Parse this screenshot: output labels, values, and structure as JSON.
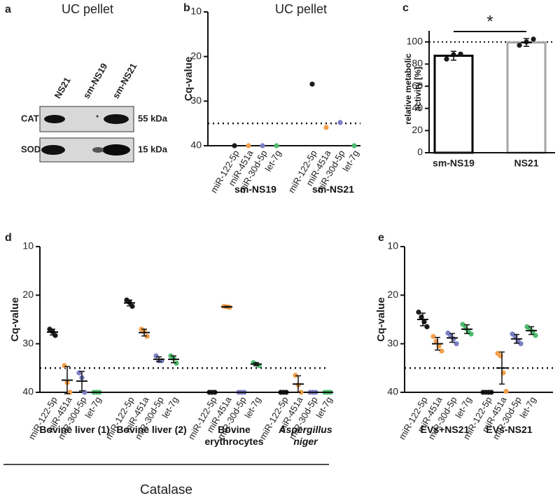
{
  "blot": {
    "panel": "a",
    "title": "UC pellet",
    "lanes": [
      "NS21",
      "sm-NS19",
      "sm-NS21"
    ],
    "rows": [
      {
        "label": "CAT",
        "size": "55 kDa"
      },
      {
        "label": "SOD",
        "size": "15 kDa"
      }
    ]
  },
  "chart_data": [
    {
      "type": "strip",
      "panel": "b",
      "title": "UC pellet",
      "ylabel": "Cq-value",
      "ylim": [
        10,
        40
      ],
      "yticks": [
        10,
        20,
        30,
        40
      ],
      "inverted": true,
      "threshold": 35,
      "categories": [
        "miR-122-5p",
        "miR-451a",
        "miR-30d-5p",
        "let-7g"
      ],
      "colors": [
        "#1a1a1a",
        "#f4a04a",
        "#7b7fc4",
        "#4cbb6c"
      ],
      "groups": [
        {
          "name": "sm-NS19",
          "points": [
            [
              40
            ],
            [
              40
            ],
            [
              40
            ],
            [
              40
            ]
          ]
        },
        {
          "name": "sm-NS21",
          "points": [
            [
              26.2
            ],
            [
              35.9
            ],
            [
              34.8
            ],
            [
              40
            ]
          ]
        }
      ]
    },
    {
      "type": "bar",
      "panel": "c",
      "ylabel": "relative metabolic activity [%]",
      "ylim": [
        0,
        110
      ],
      "yticks": [
        0,
        20,
        40,
        60,
        80,
        100
      ],
      "reference": 100,
      "annotation": "*",
      "categories": [
        "sm-NS19",
        "NS21"
      ],
      "values": [
        87.5,
        99.5
      ],
      "errors": [
        4,
        3.5
      ],
      "points": [
        [
          84.5,
          88.5,
          89
        ],
        [
          97,
          100,
          102.5
        ]
      ],
      "colors": [
        "#000000",
        "#a6a6a6"
      ]
    },
    {
      "type": "strip",
      "panel": "d",
      "ylabel": "Cq-value",
      "group_label": "Catalase",
      "ylim": [
        10,
        40
      ],
      "yticks": [
        10,
        20,
        30,
        40
      ],
      "inverted": true,
      "threshold": 35,
      "categories": [
        "miR-122-5p",
        "miR-451a",
        "miR-30d-5p",
        "let-7g"
      ],
      "colors": [
        "#1a1a1a",
        "#f4a04a",
        "#7b7fc4",
        "#4cbb6c"
      ],
      "groups": [
        {
          "name": "Bovine liver (1)",
          "points": [
            [
              27,
              27.5,
              28.3
            ],
            [
              34.5,
              38,
              40
            ],
            [
              36,
              37,
              40
            ],
            [
              40,
              40,
              40
            ]
          ],
          "means": [
            27.6,
            37.5,
            37.7,
            40
          ],
          "errors": [
            0.6,
            2.8,
            2,
            0
          ]
        },
        {
          "name": "Bovine liver (2)",
          "points": [
            [
              21,
              21.5,
              22.3
            ],
            [
              27,
              27.5,
              28.5
            ],
            [
              32.5,
              33.5,
              33.5
            ],
            [
              32.5,
              33,
              34
            ]
          ],
          "means": [
            21.6,
            27.7,
            33.2,
            33.2
          ],
          "errors": [
            0.6,
            0.7,
            0.5,
            0.7
          ]
        },
        {
          "name": "Bovine erythrocytes",
          "points": [
            [
              40,
              40,
              40
            ],
            [
              22.3,
              22.4,
              22.5
            ],
            [
              40,
              40,
              40
            ],
            [
              33.9,
              34.2,
              34.5
            ]
          ],
          "means": [
            40,
            22.4,
            40,
            34.2
          ],
          "errors": [
            0,
            0.1,
            0,
            0.3
          ]
        },
        {
          "name": "Aspergillus niger",
          "italic": true,
          "points": [
            [
              40,
              40,
              40
            ],
            [
              36.5,
              38.5,
              40
            ],
            [
              40,
              40,
              40
            ],
            [
              40,
              40,
              40
            ]
          ],
          "means": [
            40,
            38.3,
            40,
            40
          ],
          "errors": [
            0,
            1.7,
            0,
            0
          ]
        }
      ]
    },
    {
      "type": "strip",
      "panel": "e",
      "ylabel": "Cq-value",
      "ylim": [
        10,
        40
      ],
      "yticks": [
        10,
        20,
        30,
        40
      ],
      "inverted": true,
      "threshold": 35,
      "categories": [
        "miR-122-5p",
        "miR-451a",
        "miR-30d-5p",
        "let-7g"
      ],
      "colors": [
        "#1a1a1a",
        "#f4a04a",
        "#7b7fc4",
        "#4cbb6c"
      ],
      "groups": [
        {
          "name": "EVs+NS21",
          "points": [
            [
              23.5,
              24.5,
              25.5,
              26.5
            ],
            [
              28.5,
              29.5,
              30.5,
              31.5
            ],
            [
              27.8,
              28.5,
              29,
              30
            ],
            [
              26,
              26.8,
              27.5,
              28
            ]
          ],
          "means": [
            25,
            30,
            28.8,
            27
          ],
          "errors": [
            1.3,
            1.3,
            0.9,
            0.9
          ]
        },
        {
          "name": "EVs-NS21",
          "points": [
            [
              40,
              40,
              40,
              40
            ],
            [
              32,
              32.5,
              36,
              39.8
            ],
            [
              28,
              28.5,
              29.5,
              30
            ],
            [
              26.5,
              27,
              27.5,
              28.3
            ]
          ],
          "means": [
            40,
            35,
            29,
            27.3
          ],
          "errors": [
            0,
            3.3,
            0.9,
            0.8
          ]
        }
      ]
    }
  ]
}
